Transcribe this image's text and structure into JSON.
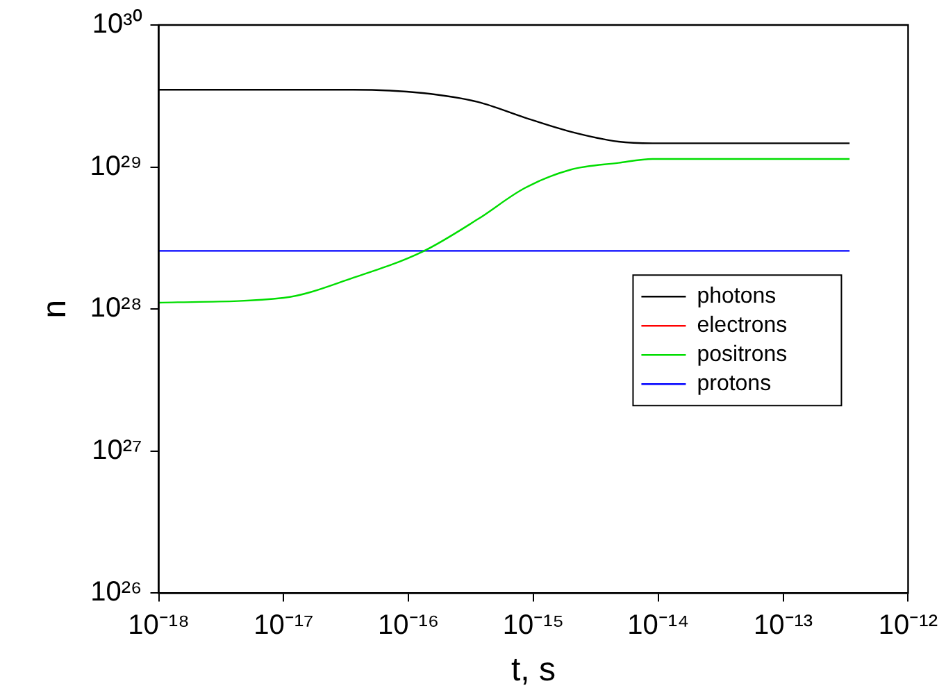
{
  "chart_data": {
    "type": "line",
    "xlabel": "t, s",
    "ylabel": "n",
    "log": "xy",
    "x": [
      1e-18,
      1e-17,
      3.6e-17,
      1.3e-16,
      3.6e-16,
      8.5e-16,
      2e-15,
      4.8e-15,
      9e-15,
      3.4e-13
    ],
    "xlim": [
      1e-18,
      1e-12
    ],
    "ylim": [
      1e+26,
      1e+30
    ],
    "xticks": [
      {
        "value": 1e-18,
        "label": "10⁻¹⁸"
      },
      {
        "value": 1e-17,
        "label": "10⁻¹⁷"
      },
      {
        "value": 1e-16,
        "label": "10⁻¹⁶"
      },
      {
        "value": 1e-15,
        "label": "10⁻¹⁵"
      },
      {
        "value": 1e-14,
        "label": "10⁻¹⁴"
      },
      {
        "value": 1e-13,
        "label": "10⁻¹³"
      },
      {
        "value": 1e-12,
        "label": "10⁻¹²"
      }
    ],
    "yticks": [
      {
        "value": 1e+26,
        "label": "10²⁶"
      },
      {
        "value": 1e+27,
        "label": "10²⁷"
      },
      {
        "value": 1e+28,
        "label": "10²⁸"
      },
      {
        "value": 1e+29,
        "label": "10²⁹"
      },
      {
        "value": 1e+30,
        "label": "10³⁰"
      }
    ],
    "grid": false,
    "legend": "right",
    "marker": "none",
    "line_style": "solid",
    "series": [
      {
        "name": "photons",
        "color": "#000000",
        "values": [
          3.5e+29,
          3.5e+29,
          3.5e+29,
          3.32e+29,
          2.87e+29,
          2.23e+29,
          1.77e+29,
          1.51e+29,
          1.47e+29,
          1.47e+29
        ]
      },
      {
        "name": "electrons",
        "color": "#ff0000",
        "values": [
          null,
          null,
          null,
          null,
          null,
          null,
          null,
          null,
          null,
          null
        ]
      },
      {
        "name": "positrons",
        "color": "#00dd00",
        "values": [
          1.11e+28,
          1.2e+28,
          1.66e+28,
          2.54e+28,
          4.3e+28,
          7.1e+28,
          9.6e+28,
          1.07e+29,
          1.14e+29,
          1.14e+29
        ]
      },
      {
        "name": "protons",
        "color": "#0000ff",
        "values": [
          2.57e+28,
          2.57e+28,
          2.57e+28,
          2.57e+28,
          2.57e+28,
          2.57e+28,
          2.57e+28,
          2.57e+28,
          2.57e+28,
          2.57e+28
        ]
      }
    ]
  }
}
